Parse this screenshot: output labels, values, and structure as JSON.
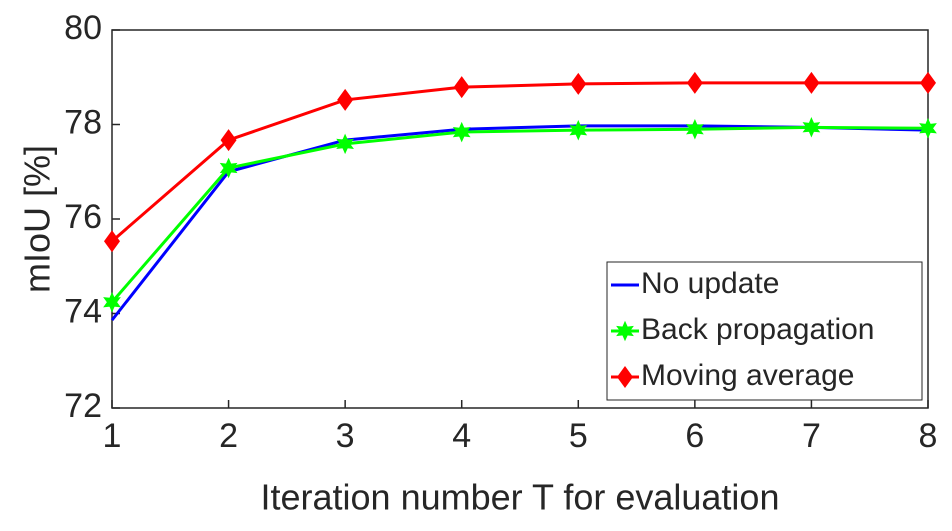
{
  "chart_data": {
    "type": "line",
    "x_label": "Iteration number T for evaluation",
    "y_label": "mIoU [%]",
    "x": [
      1,
      2,
      3,
      4,
      5,
      6,
      7,
      8
    ],
    "xlim": [
      1,
      8
    ],
    "xticks": [
      1,
      2,
      3,
      4,
      5,
      6,
      7,
      8
    ],
    "ylim": [
      72,
      80
    ],
    "yticks": [
      72,
      74,
      76,
      78,
      80
    ],
    "legend": "lower right",
    "series": [
      {
        "name": "No update",
        "color": "#0000ff",
        "marker": "none",
        "values": [
          73.86,
          77.0,
          77.67,
          77.9,
          77.97,
          77.97,
          77.94,
          77.88
        ]
      },
      {
        "name": "Back propagation",
        "color": "#00ff00",
        "marker": "star",
        "values": [
          74.24,
          77.08,
          77.59,
          77.84,
          77.88,
          77.9,
          77.94,
          77.92
        ]
      },
      {
        "name": "Moving average",
        "color": "#ff0000",
        "marker": "diamond",
        "values": [
          75.53,
          77.67,
          78.52,
          78.79,
          78.86,
          78.88,
          78.88,
          78.88
        ]
      }
    ]
  }
}
